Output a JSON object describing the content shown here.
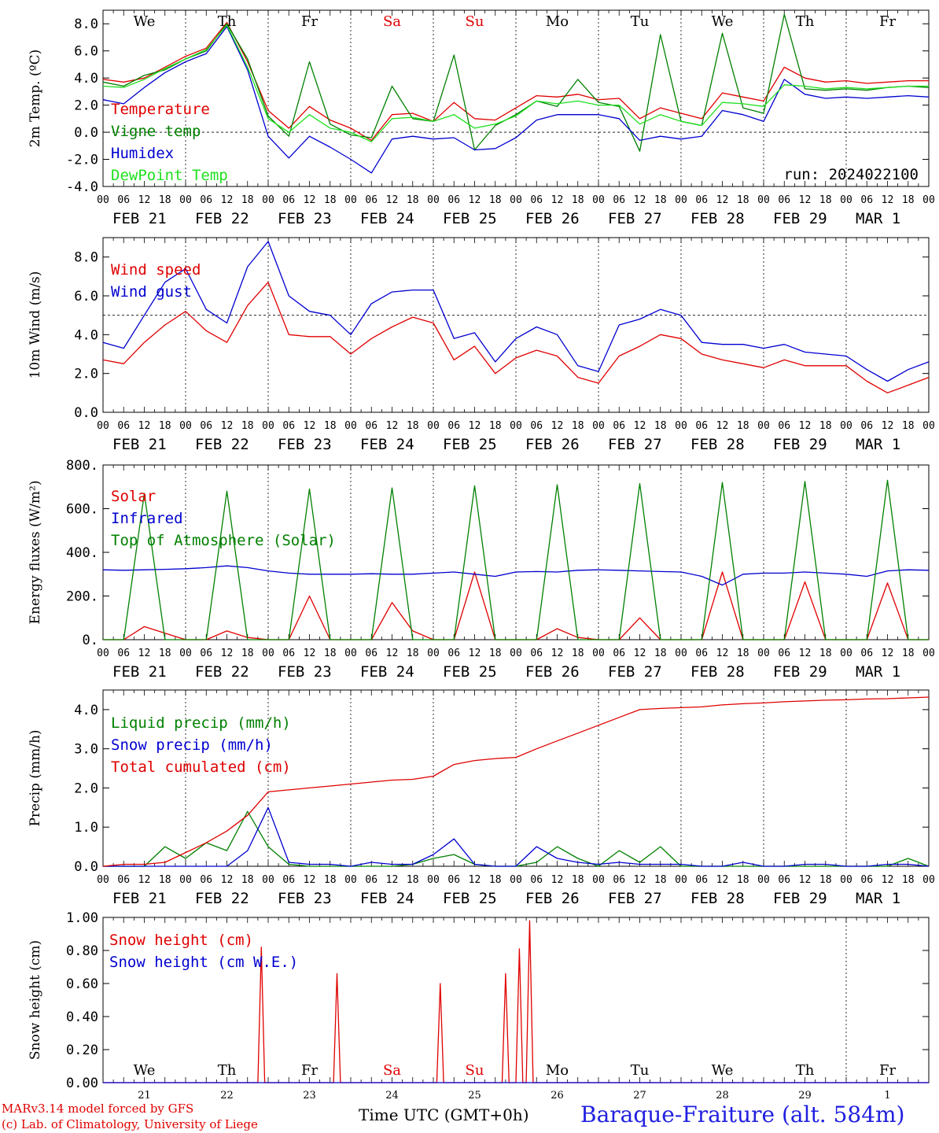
{
  "colors": {
    "red": "#e00000",
    "green": "#008000",
    "blue": "#0000d0",
    "lightgreen": "#20e020",
    "darkred": "#a00000"
  },
  "days": [
    {
      "date": "FEB 21",
      "dow": "We",
      "num": "21",
      "red": false
    },
    {
      "date": "FEB 22",
      "dow": "Th",
      "num": "22",
      "red": false
    },
    {
      "date": "FEB 23",
      "dow": "Fr",
      "num": "23",
      "red": false
    },
    {
      "date": "FEB 24",
      "dow": "Sa",
      "num": "24",
      "red": true
    },
    {
      "date": "FEB 25",
      "dow": "Su",
      "num": "25",
      "red": true
    },
    {
      "date": "FEB 26",
      "dow": "Mo",
      "num": "26",
      "red": false
    },
    {
      "date": "FEB 27",
      "dow": "Tu",
      "num": "27",
      "red": false
    },
    {
      "date": "FEB 28",
      "dow": "We",
      "num": "28",
      "red": false
    },
    {
      "date": "FEB 29",
      "dow": "Th",
      "num": "29",
      "red": false
    },
    {
      "date": "MAR  1",
      "dow": "Fr",
      "num": "1",
      "red": false
    }
  ],
  "hour_ticks": [
    "00",
    "06",
    "12",
    "18"
  ],
  "footer": {
    "credit_line1": "MARv3.14 model forced by GFS",
    "credit_line2": "(c) Lab. of Climatology, University of Liege",
    "xlabel": "Time UTC (GMT+0h)",
    "station": "Baraque-Fraiture (alt. 584m)"
  },
  "chart_data": [
    {
      "type": "line",
      "ylabel": "2m Temp. (ºC)",
      "ylim": [
        -4,
        9
      ],
      "yticks": [
        "-4.0",
        "-2.0",
        "0.0",
        "2.0",
        "4.0",
        "6.0",
        "8.0"
      ],
      "ytick_values": [
        -4,
        -2,
        0,
        2,
        4,
        6,
        8
      ],
      "ref_line": 0,
      "annotation": "run: 2024022100",
      "x_hours": [
        0,
        6,
        12,
        18,
        24,
        30,
        36,
        42,
        48,
        54,
        60,
        66,
        72,
        78,
        84,
        90,
        96,
        102,
        108,
        114,
        120,
        126,
        132,
        138,
        144,
        150,
        156,
        162,
        168,
        174,
        180,
        186,
        192,
        198,
        204,
        210,
        216,
        222,
        228,
        234,
        240
      ],
      "series": [
        {
          "name": "Temperature",
          "color": "red",
          "values": [
            3.9,
            3.7,
            4.0,
            4.8,
            5.6,
            6.2,
            8.1,
            5.2,
            1.6,
            0.3,
            1.9,
            0.9,
            0.3,
            -0.6,
            1.3,
            1.4,
            0.8,
            2.2,
            1.0,
            0.9,
            1.8,
            2.7,
            2.6,
            2.8,
            2.4,
            2.5,
            1.0,
            1.8,
            1.4,
            1.0,
            2.9,
            2.6,
            2.3,
            4.8,
            4.0,
            3.7,
            3.8,
            3.6,
            3.7,
            3.8,
            3.8
          ]
        },
        {
          "name": "Vigne temp",
          "color": "green",
          "values": [
            3.7,
            3.4,
            4.2,
            4.6,
            5.4,
            6.0,
            8.0,
            5.4,
            1.2,
            -0.3,
            5.2,
            0.6,
            -0.2,
            -0.4,
            3.4,
            1.0,
            0.8,
            5.7,
            -1.3,
            0.5,
            1.3,
            2.3,
            1.9,
            3.9,
            2.2,
            1.9,
            -1.4,
            7.2,
            0.8,
            0.5,
            7.3,
            1.8,
            1.4,
            8.7,
            3.2,
            3.1,
            3.2,
            3.1,
            3.3,
            3.4,
            3.3
          ]
        },
        {
          "name": "Humidex",
          "color": "blue",
          "values": [
            2.4,
            2.1,
            3.3,
            4.4,
            5.2,
            5.8,
            7.8,
            4.6,
            -0.3,
            -1.9,
            -0.3,
            -1.1,
            -2.0,
            -3.0,
            -0.5,
            -0.3,
            -0.5,
            -0.4,
            -1.3,
            -1.2,
            -0.4,
            0.9,
            1.3,
            1.3,
            1.3,
            1.0,
            -0.6,
            -0.3,
            -0.5,
            -0.3,
            1.6,
            1.3,
            0.8,
            3.9,
            2.8,
            2.5,
            2.6,
            2.5,
            2.6,
            2.7,
            2.6
          ]
        },
        {
          "name": "DewPoint Temp",
          "color": "lightgreen",
          "values": [
            3.4,
            3.3,
            3.9,
            4.7,
            5.4,
            6.1,
            7.9,
            4.8,
            1.0,
            0.0,
            1.3,
            0.3,
            0.0,
            -0.7,
            1.0,
            1.1,
            0.8,
            1.3,
            0.3,
            0.6,
            1.2,
            2.3,
            2.1,
            2.3,
            2.0,
            2.0,
            0.6,
            1.3,
            0.8,
            0.5,
            2.2,
            2.1,
            1.9,
            3.5,
            3.4,
            3.2,
            3.3,
            3.2,
            3.3,
            3.4,
            3.4
          ]
        }
      ]
    },
    {
      "type": "line",
      "ylabel": "10m Wind (m/s)",
      "ylim": [
        0,
        9
      ],
      "yticks": [
        "0.0",
        "2.0",
        "4.0",
        "6.0",
        "8.0"
      ],
      "ytick_values": [
        0,
        2,
        4,
        6,
        8
      ],
      "ref_line": 5,
      "x_hours": [
        0,
        6,
        12,
        18,
        24,
        30,
        36,
        42,
        48,
        54,
        60,
        66,
        72,
        78,
        84,
        90,
        96,
        102,
        108,
        114,
        120,
        126,
        132,
        138,
        144,
        150,
        156,
        162,
        168,
        174,
        180,
        186,
        192,
        198,
        204,
        210,
        216,
        222,
        228,
        234,
        240
      ],
      "series": [
        {
          "name": "Wind speed",
          "color": "red",
          "values": [
            2.7,
            2.5,
            3.6,
            4.5,
            5.2,
            4.2,
            3.6,
            5.5,
            6.7,
            4.0,
            3.9,
            3.9,
            3.0,
            3.8,
            4.4,
            4.9,
            4.6,
            2.7,
            3.4,
            2.0,
            2.8,
            3.2,
            2.9,
            1.8,
            1.5,
            2.9,
            3.4,
            4.0,
            3.8,
            3.0,
            2.7,
            2.5,
            2.3,
            2.7,
            2.4,
            2.4,
            2.4,
            1.6,
            1.0,
            1.4,
            1.8
          ]
        },
        {
          "name": "Wind gust",
          "color": "blue",
          "values": [
            3.6,
            3.3,
            5.0,
            6.7,
            7.4,
            5.3,
            4.6,
            7.5,
            8.8,
            6.0,
            5.2,
            5.0,
            4.0,
            5.6,
            6.2,
            6.3,
            6.3,
            3.8,
            4.1,
            2.6,
            3.8,
            4.4,
            4.0,
            2.4,
            2.1,
            4.5,
            4.8,
            5.3,
            5.0,
            3.6,
            3.5,
            3.5,
            3.3,
            3.5,
            3.1,
            3.0,
            2.9,
            2.2,
            1.6,
            2.2,
            2.6
          ]
        }
      ]
    },
    {
      "type": "line",
      "ylabel": "Energy fluxes (W/m²)",
      "ylim": [
        0,
        800
      ],
      "yticks": [
        "0.",
        "200.",
        "400.",
        "600.",
        "800."
      ],
      "ytick_values": [
        0,
        200,
        400,
        600,
        800
      ],
      "x_hours": [
        0,
        6,
        12,
        18,
        24,
        30,
        36,
        42,
        48,
        54,
        60,
        66,
        72,
        78,
        84,
        90,
        96,
        102,
        108,
        114,
        120,
        126,
        132,
        138,
        144,
        150,
        156,
        162,
        168,
        174,
        180,
        186,
        192,
        198,
        204,
        210,
        216,
        222,
        228,
        234,
        240
      ],
      "series": [
        {
          "name": "Solar",
          "color": "red",
          "values": [
            0,
            0,
            60,
            30,
            0,
            0,
            40,
            10,
            0,
            0,
            200,
            0,
            0,
            0,
            170,
            40,
            0,
            0,
            310,
            0,
            0,
            0,
            50,
            10,
            0,
            0,
            100,
            0,
            0,
            0,
            310,
            0,
            0,
            0,
            265,
            0,
            0,
            0,
            260,
            0,
            0
          ]
        },
        {
          "name": "Infrared",
          "color": "blue",
          "values": [
            320,
            318,
            320,
            322,
            325,
            330,
            338,
            330,
            315,
            305,
            300,
            300,
            300,
            302,
            300,
            300,
            305,
            310,
            300,
            290,
            310,
            312,
            310,
            318,
            320,
            318,
            315,
            312,
            310,
            290,
            250,
            300,
            305,
            305,
            310,
            305,
            300,
            290,
            315,
            320,
            318
          ]
        },
        {
          "name": "Top of Atmosphere (Solar)",
          "color": "green",
          "values": [
            0,
            0,
            670,
            0,
            0,
            0,
            680,
            0,
            0,
            0,
            690,
            0,
            0,
            0,
            695,
            0,
            0,
            0,
            705,
            0,
            0,
            0,
            710,
            0,
            0,
            0,
            715,
            0,
            0,
            0,
            720,
            0,
            0,
            0,
            725,
            0,
            0,
            0,
            730,
            0,
            0
          ]
        }
      ]
    },
    {
      "type": "line",
      "ylabel": "Precip (mm/h)",
      "ylim": [
        0,
        4.5
      ],
      "yticks": [
        "0.0",
        "1.0",
        "2.0",
        "3.0",
        "4.0"
      ],
      "ytick_values": [
        0,
        1,
        2,
        3,
        4
      ],
      "x_hours": [
        0,
        6,
        12,
        18,
        24,
        30,
        36,
        42,
        48,
        54,
        60,
        66,
        72,
        78,
        84,
        90,
        96,
        102,
        108,
        114,
        120,
        126,
        132,
        138,
        144,
        150,
        156,
        162,
        168,
        174,
        180,
        186,
        192,
        198,
        204,
        210,
        216,
        222,
        228,
        234,
        240
      ],
      "series": [
        {
          "name": "Liquid precip (mm/h)",
          "color": "green",
          "values": [
            0.0,
            0.0,
            0.0,
            0.5,
            0.2,
            0.6,
            0.4,
            1.4,
            0.5,
            0.05,
            0.0,
            0.0,
            0.0,
            0.0,
            0.0,
            0.05,
            0.2,
            0.3,
            0.05,
            0.0,
            0.0,
            0.1,
            0.5,
            0.2,
            0.0,
            0.4,
            0.1,
            0.5,
            0.0,
            0.0,
            0.0,
            0.0,
            0.0,
            0.0,
            0.0,
            0.0,
            0.0,
            0.0,
            0.0,
            0.2,
            0.0
          ]
        },
        {
          "name": "Snow precip (mm/h)",
          "color": "blue",
          "values": [
            0.0,
            0.0,
            0.0,
            0.0,
            0.0,
            0.0,
            0.0,
            0.4,
            1.5,
            0.1,
            0.05,
            0.05,
            0.0,
            0.1,
            0.05,
            0.05,
            0.3,
            0.7,
            0.05,
            0.0,
            0.0,
            0.5,
            0.2,
            0.1,
            0.05,
            0.1,
            0.05,
            0.05,
            0.05,
            0.0,
            0.0,
            0.1,
            0.0,
            0.0,
            0.05,
            0.05,
            0.0,
            0.0,
            0.05,
            0.05,
            0.0
          ]
        },
        {
          "name": "Total cumulated (cm)",
          "color": "red",
          "values": [
            0.0,
            0.05,
            0.05,
            0.1,
            0.35,
            0.6,
            0.9,
            1.3,
            1.9,
            1.95,
            2.0,
            2.05,
            2.1,
            2.15,
            2.2,
            2.22,
            2.3,
            2.6,
            2.7,
            2.75,
            2.78,
            3.0,
            3.2,
            3.4,
            3.6,
            3.8,
            4.0,
            4.03,
            4.05,
            4.07,
            4.12,
            4.15,
            4.17,
            4.2,
            4.22,
            4.24,
            4.25,
            4.27,
            4.28,
            4.3,
            4.32
          ]
        }
      ]
    },
    {
      "type": "line",
      "ylabel": "Snow height (cm)",
      "ylim": [
        0,
        1.0
      ],
      "yticks": [
        "0.00",
        "0.20",
        "0.40",
        "0.60",
        "0.80",
        "1.00"
      ],
      "ytick_values": [
        0,
        0.2,
        0.4,
        0.6,
        0.8,
        1.0
      ],
      "x_hours": [
        0,
        44,
        45,
        46,
        47,
        48,
        66,
        67,
        68,
        69,
        70,
        96,
        97,
        98,
        99,
        100,
        116,
        117,
        118,
        119,
        120,
        121,
        122,
        123,
        124,
        125,
        126,
        127,
        128,
        240
      ],
      "series": [
        {
          "name": "Snow height (cm)",
          "color": "red",
          "values": [
            0,
            0,
            0,
            0.82,
            0,
            0,
            0,
            0,
            0.66,
            0,
            0,
            0,
            0,
            0.6,
            0,
            0,
            0,
            0.66,
            0,
            0,
            0,
            0.81,
            0,
            0,
            0.98,
            0,
            0,
            0,
            0,
            0
          ]
        },
        {
          "name": "Snow height (cm W.E.)",
          "color": "blue",
          "values": [
            0,
            0,
            0,
            0,
            0,
            0,
            0,
            0,
            0,
            0,
            0,
            0,
            0,
            0,
            0,
            0,
            0,
            0,
            0,
            0,
            0,
            0,
            0,
            0,
            0,
            0,
            0,
            0,
            0,
            0
          ]
        }
      ]
    }
  ]
}
